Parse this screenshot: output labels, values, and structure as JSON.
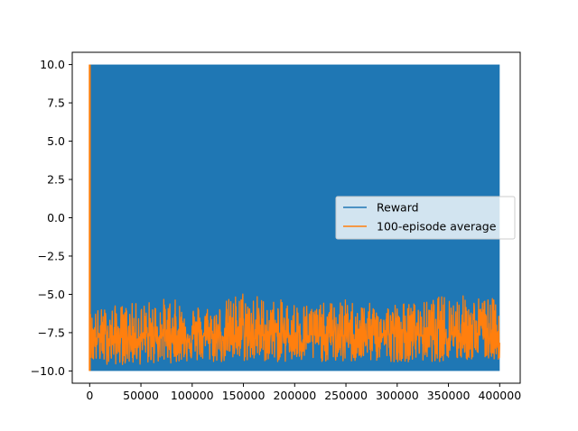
{
  "chart_data": {
    "type": "line",
    "title": "",
    "xlabel": "",
    "ylabel": "",
    "xlim": [
      -17000,
      420000
    ],
    "ylim": [
      -10.8,
      10.8
    ],
    "grid": false,
    "legend_position": "center-right",
    "x_ticks": [
      0,
      50000,
      100000,
      150000,
      200000,
      250000,
      300000,
      350000,
      400000
    ],
    "x_tick_labels": [
      "0",
      "50000",
      "100000",
      "150000",
      "200000",
      "250000",
      "300000",
      "350000",
      "400000"
    ],
    "y_ticks": [
      -10.0,
      -7.5,
      -5.0,
      -2.5,
      0.0,
      2.5,
      5.0,
      7.5,
      10.0
    ],
    "y_tick_labels": [
      "−10.0",
      "−7.5",
      "−5.0",
      "−2.5",
      "0.0",
      "2.5",
      "5.0",
      "7.5",
      "10.0"
    ],
    "series": [
      {
        "name": "Reward",
        "color": "#1f77b4",
        "description_range": [
          -10,
          10
        ],
        "x": [
          0,
          400000
        ],
        "y_min": [
          -10,
          -10
        ],
        "y_max": [
          10,
          10
        ]
      },
      {
        "name": "100-episode average",
        "color": "#ff7f0e",
        "initial_spike": {
          "x": 0,
          "y_min": -10,
          "y_max": 10
        },
        "x": [
          0,
          25000,
          50000,
          75000,
          100000,
          125000,
          150000,
          175000,
          200000,
          225000,
          250000,
          275000,
          300000,
          325000,
          350000,
          375000,
          400000
        ],
        "y_min": [
          -9.5,
          -9.6,
          -9.6,
          -9.5,
          -9.4,
          -9.5,
          -9.4,
          -9.4,
          -9.5,
          -9.4,
          -9.5,
          -9.4,
          -9.4,
          -9.4,
          -9.4,
          -9.3,
          -9.3
        ],
        "y_max": [
          -6.0,
          -5.7,
          -5.5,
          -5.2,
          -5.6,
          -5.7,
          -4.6,
          -5.3,
          -5.4,
          -5.6,
          -5.3,
          -5.6,
          -5.5,
          -5.5,
          -4.9,
          -5.1,
          -5.3
        ],
        "y_mean": [
          -7.8,
          -7.8,
          -7.8,
          -7.7,
          -7.7,
          -7.7,
          -7.7,
          -7.6,
          -7.7,
          -7.7,
          -7.7,
          -7.6,
          -7.6,
          -7.6,
          -7.5,
          -7.5,
          -7.5
        ]
      }
    ]
  }
}
